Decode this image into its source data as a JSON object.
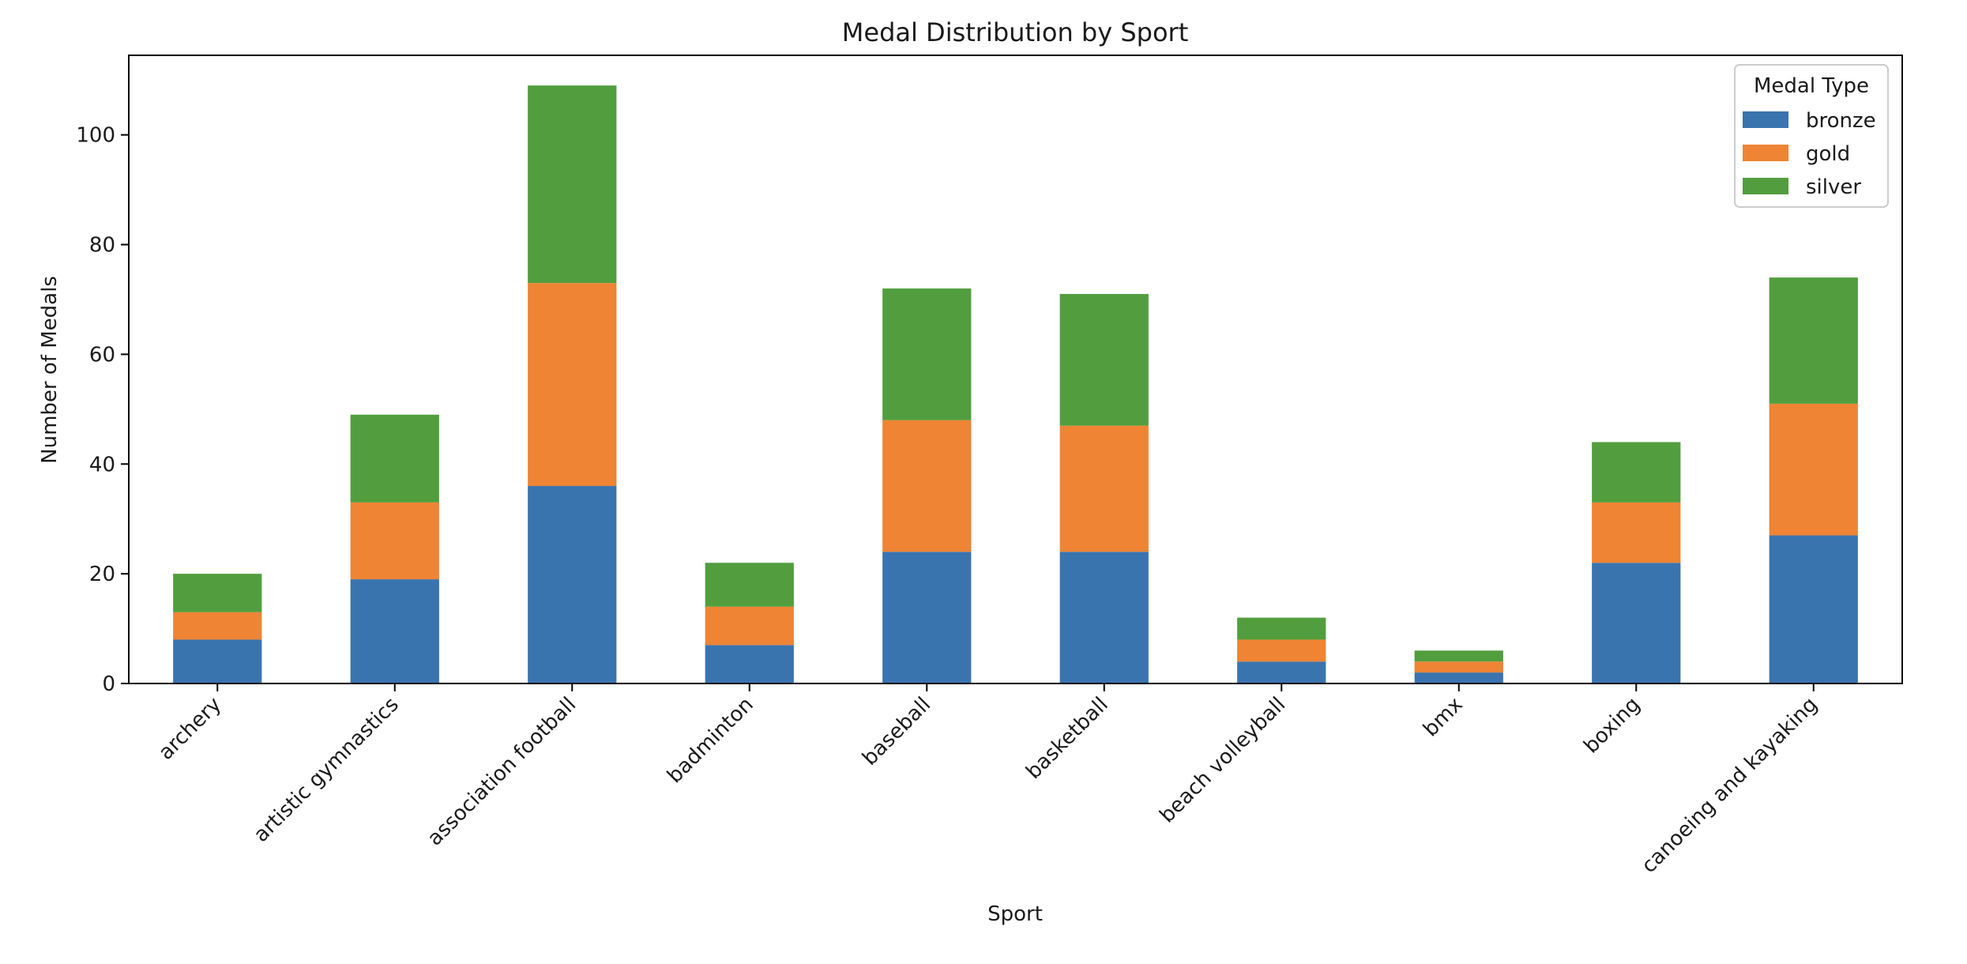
{
  "chart_data": {
    "type": "bar",
    "stacked": true,
    "title": "Medal Distribution by Sport",
    "xlabel": "Sport",
    "ylabel": "Number of Medals",
    "categories": [
      "archery",
      "artistic gymnastics",
      "association football",
      "badminton",
      "baseball",
      "basketball",
      "beach volleyball",
      "bmx",
      "boxing",
      "canoeing and kayaking"
    ],
    "series": [
      {
        "name": "bronze",
        "color": "#3A74AE",
        "values": [
          8,
          19,
          36,
          7,
          24,
          24,
          4,
          2,
          22,
          27
        ]
      },
      {
        "name": "gold",
        "color": "#EE8434",
        "values": [
          5,
          14,
          37,
          7,
          24,
          23,
          4,
          2,
          11,
          24
        ]
      },
      {
        "name": "silver",
        "color": "#529E3E",
        "values": [
          7,
          16,
          36,
          8,
          24,
          24,
          4,
          2,
          11,
          23
        ]
      }
    ],
    "yticks": [
      0,
      20,
      40,
      60,
      80,
      100
    ],
    "ylim": [
      0,
      114.5
    ],
    "grid": false,
    "legend": {
      "title": "Medal Type",
      "position": "top-right"
    }
  }
}
